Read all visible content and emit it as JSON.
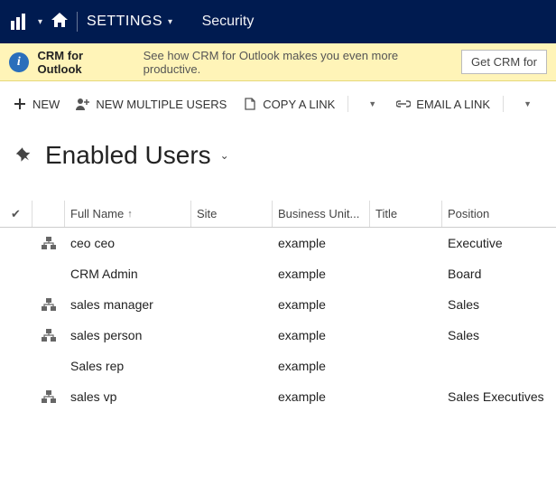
{
  "topnav": {
    "settings_label": "SETTINGS",
    "security_label": "Security",
    "colors": {
      "bg": "#001b50"
    }
  },
  "notification": {
    "title": "CRM for Outlook",
    "message": "See how CRM for Outlook makes you even more productive.",
    "button_label": "Get CRM for",
    "bg_color": "#fff4b8"
  },
  "commands": {
    "new": "NEW",
    "new_multiple": "NEW MULTIPLE USERS",
    "copy_link": "COPY A LINK",
    "email_link": "EMAIL A LINK"
  },
  "heading": {
    "title": "Enabled Users"
  },
  "grid": {
    "columns": {
      "full_name": "Full Name",
      "site": "Site",
      "business_unit": "Business Unit...",
      "title": "Title",
      "position": "Position"
    },
    "rows": [
      {
        "hier": true,
        "full_name": "ceo ceo",
        "site": "",
        "business_unit": "example",
        "title": "",
        "position": "Executive"
      },
      {
        "hier": false,
        "full_name": "CRM Admin",
        "site": "",
        "business_unit": "example",
        "title": "",
        "position": "Board"
      },
      {
        "hier": true,
        "full_name": "sales manager",
        "site": "",
        "business_unit": "example",
        "title": "",
        "position": "Sales"
      },
      {
        "hier": true,
        "full_name": "sales person",
        "site": "",
        "business_unit": "example",
        "title": "",
        "position": "Sales"
      },
      {
        "hier": false,
        "full_name": "Sales rep",
        "site": "",
        "business_unit": "example",
        "title": "",
        "position": ""
      },
      {
        "hier": true,
        "full_name": "sales vp",
        "site": "",
        "business_unit": "example",
        "title": "",
        "position": "Sales Executives"
      }
    ]
  }
}
